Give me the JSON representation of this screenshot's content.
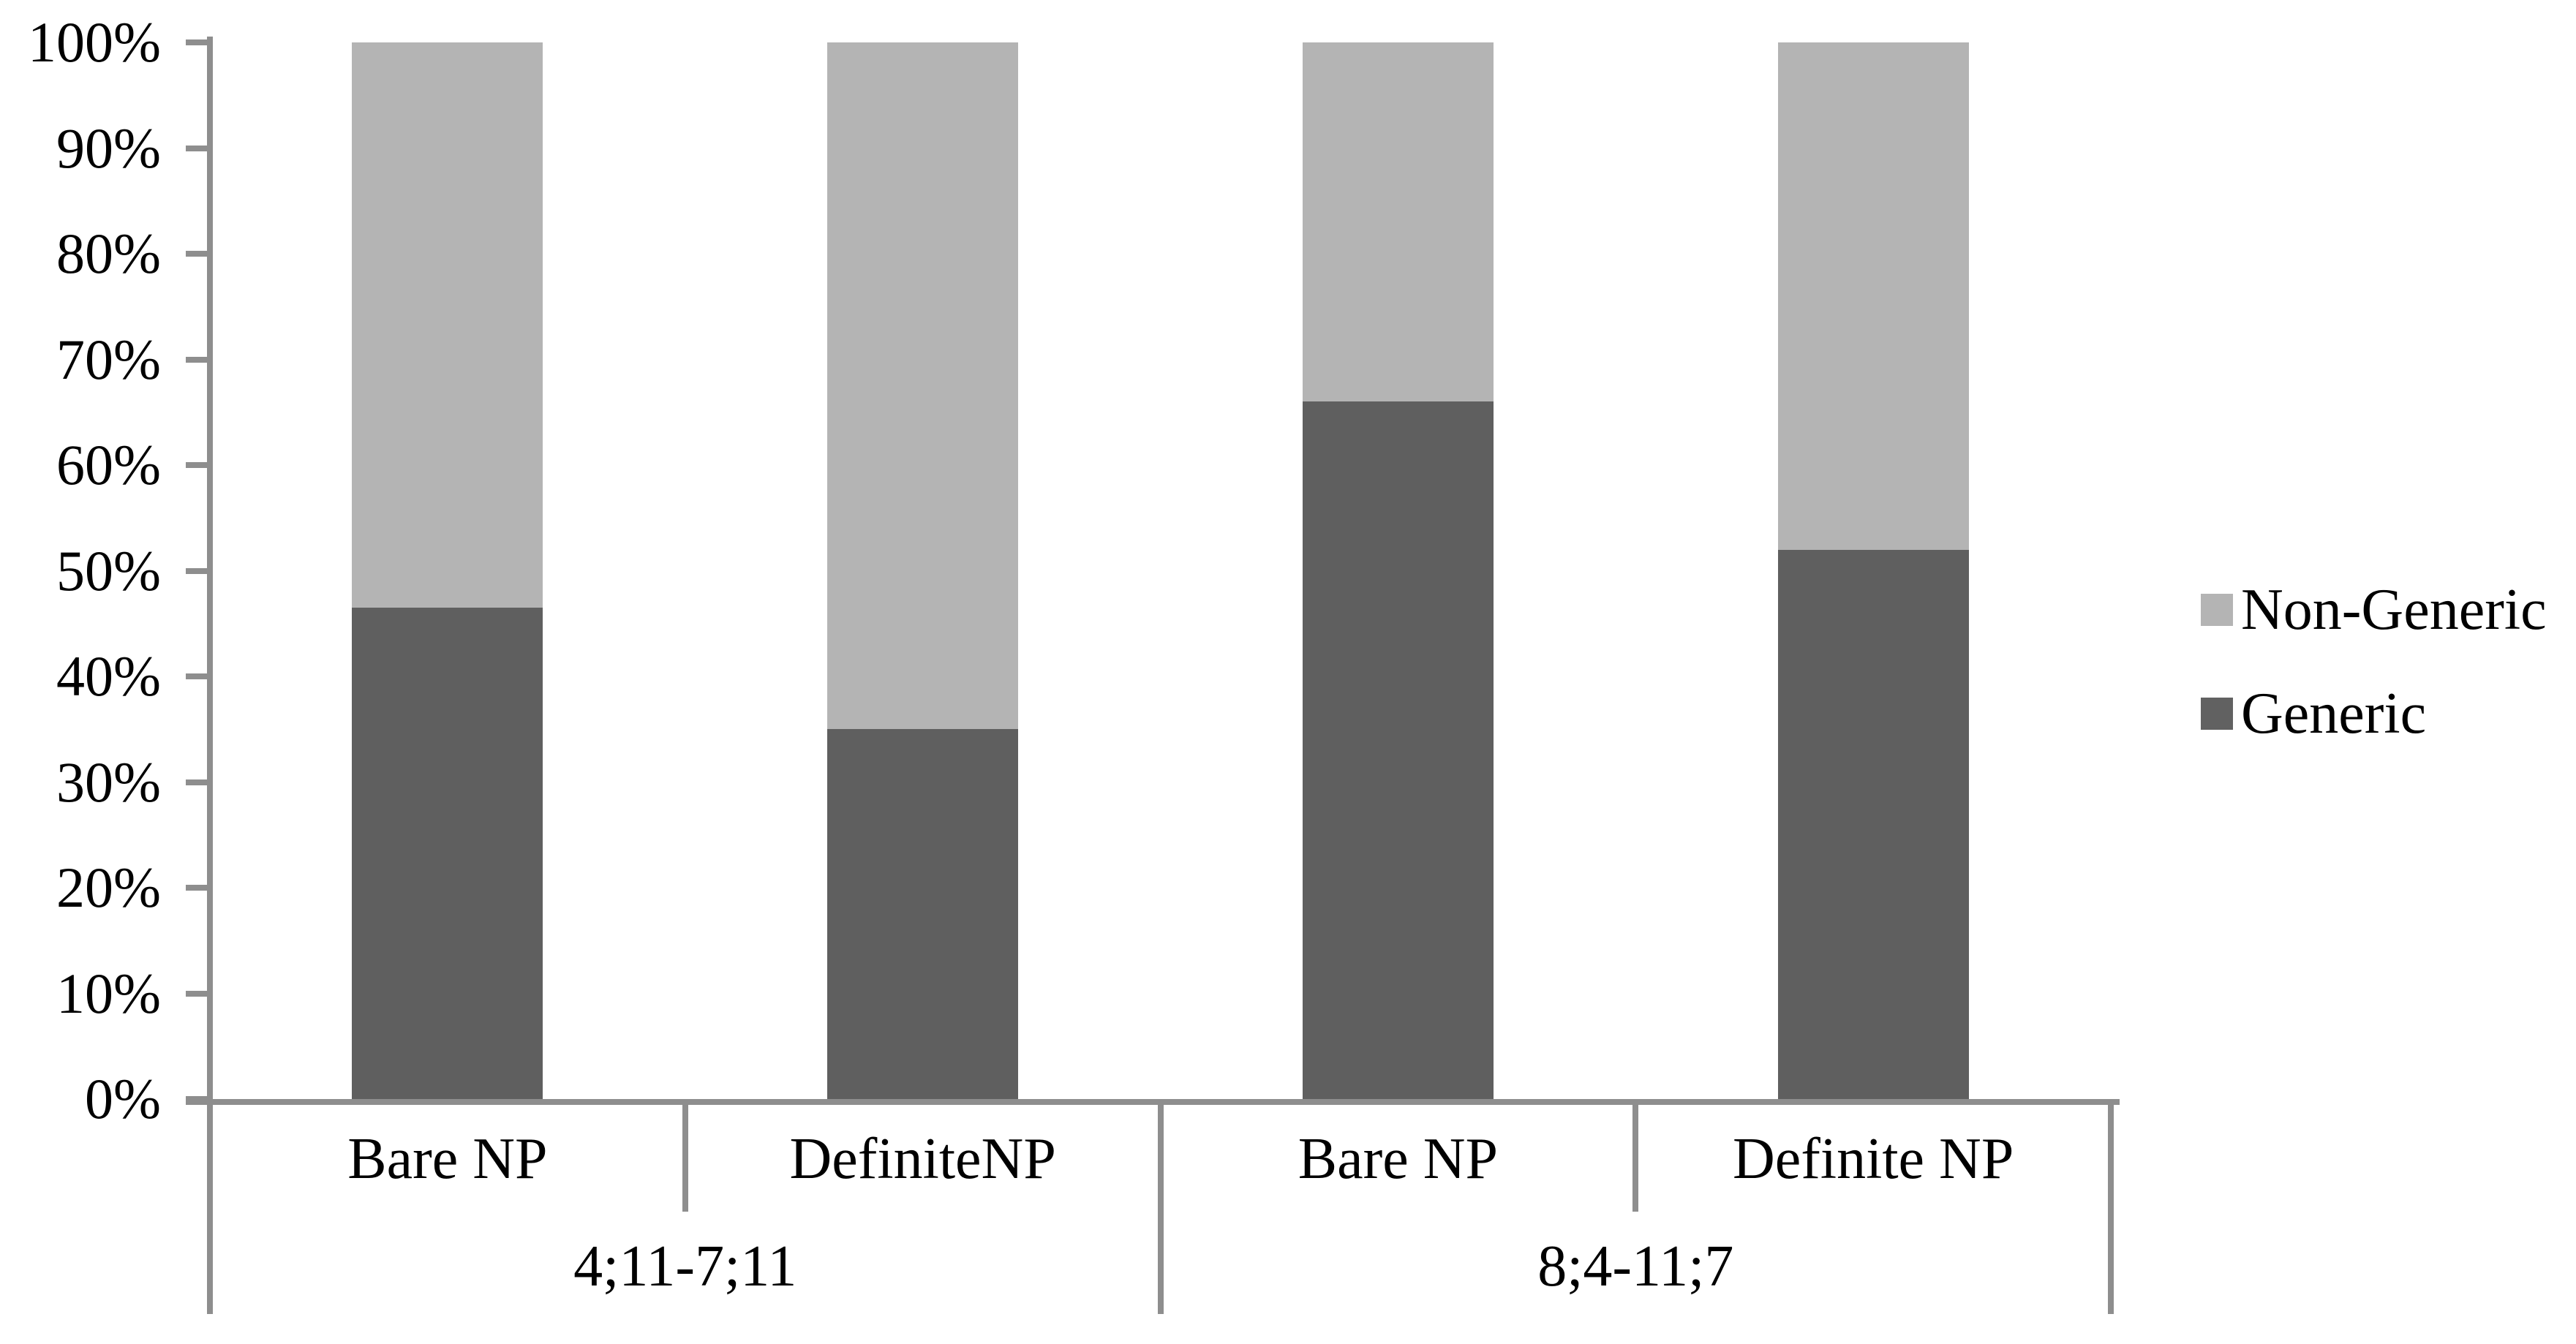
{
  "chart_data": {
    "type": "bar",
    "variant": "stacked-100-percent",
    "title": "",
    "xlabel": "",
    "ylabel": "",
    "grid": false,
    "background": "#ffffff",
    "text_color": "#000000",
    "axis_color": "#8e8e8e",
    "legend_position": "right",
    "y_axis": {
      "min": 0,
      "max": 100,
      "unit": "%",
      "ticks": [
        "100%",
        "90%",
        "80%",
        "70%",
        "60%",
        "50%",
        "40%",
        "30%",
        "20%",
        "10%",
        "0%"
      ]
    },
    "categories": [
      "Bare NP",
      "DefiniteNP",
      "Bare NP",
      "Definite NP"
    ],
    "groups": [
      {
        "label": "4;11-7;11",
        "category_indexes": [
          0,
          1
        ]
      },
      {
        "label": "8;4-11;7",
        "category_indexes": [
          2,
          3
        ]
      }
    ],
    "series": [
      {
        "name": "Generic",
        "color": "#5f5f5f",
        "values": [
          46.5,
          35,
          66,
          52
        ]
      },
      {
        "name": "Non-Generic",
        "color": "#b4b4b4",
        "values": [
          53.5,
          65,
          34,
          48
        ]
      }
    ],
    "legend": [
      {
        "label": "Non-Generic",
        "color": "#b4b4b4"
      },
      {
        "label": "Generic",
        "color": "#616161"
      }
    ]
  }
}
